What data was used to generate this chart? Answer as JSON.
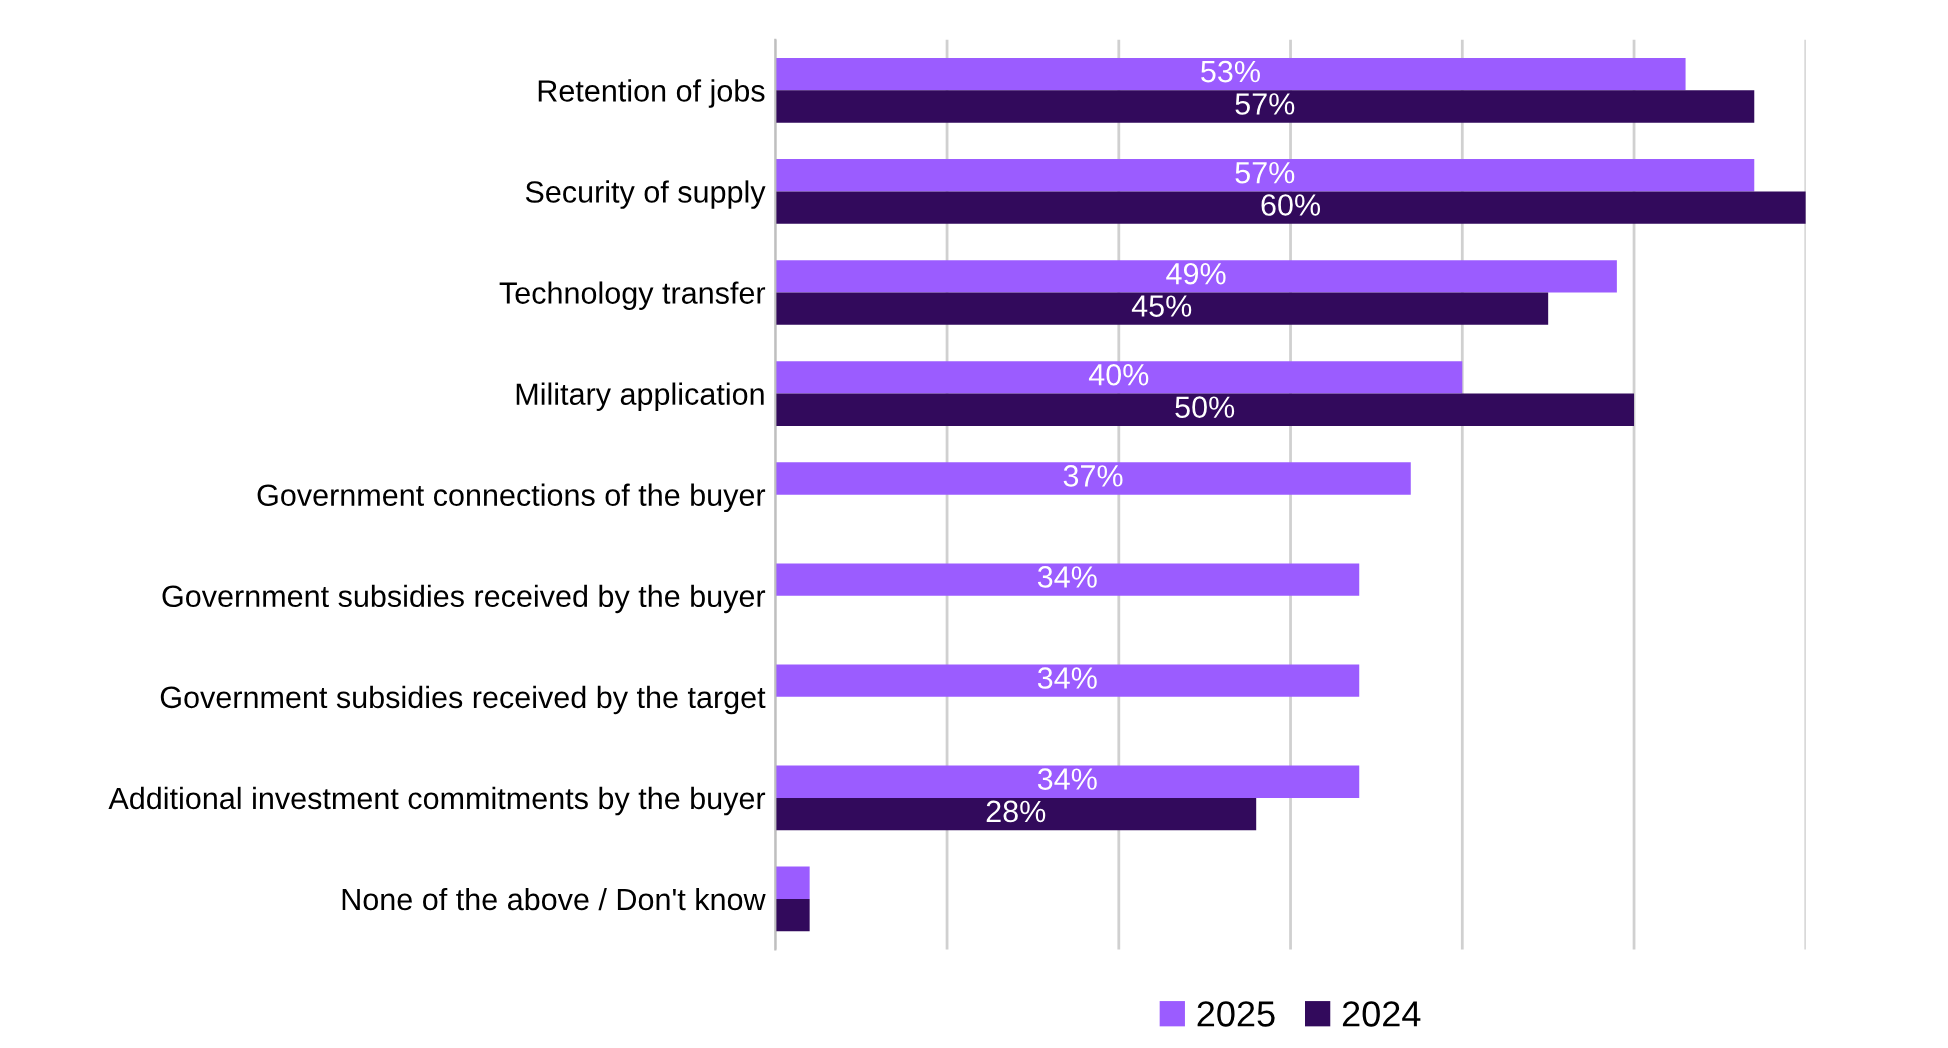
{
  "chart_data": {
    "type": "bar",
    "orientation": "horizontal",
    "categories": [
      "Retention of jobs",
      "Security of supply",
      "Technology transfer",
      "Military application",
      "Government connections of the buyer",
      "Government subsidies received by the buyer",
      "Government subsidies received by the target",
      "Additional investment commitments by the buyer",
      "None of the above / Don't know"
    ],
    "series": [
      {
        "name": "2025",
        "color": "#9b5cff",
        "values": [
          53,
          57,
          49,
          40,
          37,
          34,
          34,
          34,
          2
        ],
        "value_labels": [
          "53%",
          "57%",
          "49%",
          "40%",
          "37%",
          "34%",
          "34%",
          "34%",
          null
        ]
      },
      {
        "name": "2024",
        "color": "#320a5c",
        "values": [
          57,
          60,
          45,
          50,
          null,
          null,
          null,
          28,
          2
        ],
        "value_labels": [
          "57%",
          "60%",
          "45%",
          "50%",
          null,
          null,
          null,
          "28%",
          null
        ]
      }
    ],
    "xlim": [
      0,
      60
    ],
    "xticks": [
      {
        "value": 0,
        "label": null
      },
      {
        "value": 10,
        "label": null
      },
      {
        "value": 20,
        "label": null
      },
      {
        "value": 30,
        "label": null
      },
      {
        "value": 40,
        "label": null
      },
      {
        "value": 50,
        "label": null
      },
      {
        "value": 60,
        "label": null
      }
    ],
    "grid": "x",
    "legend": "bottom",
    "tick_labels": "y"
  }
}
